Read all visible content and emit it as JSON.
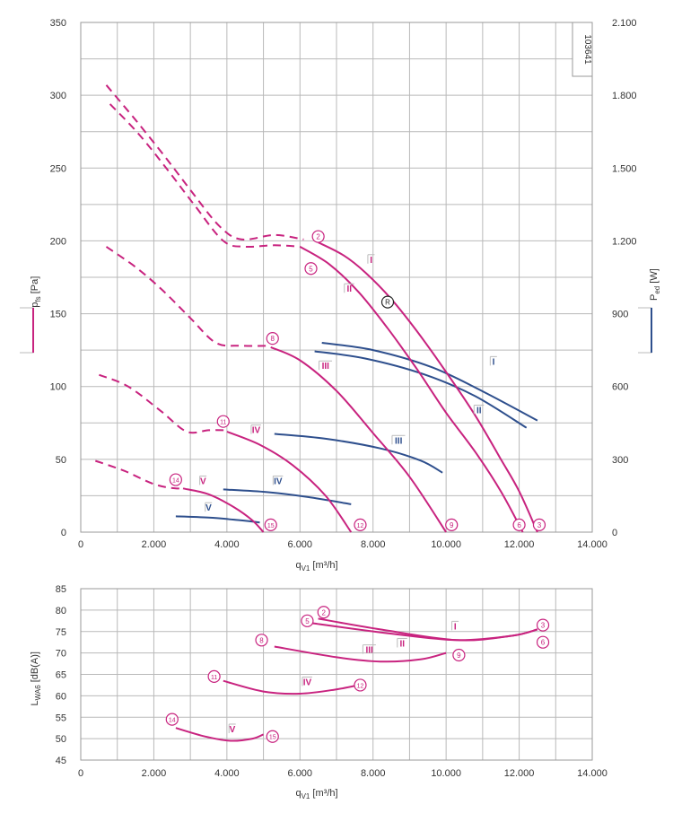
{
  "chart_data": [
    {
      "type": "line",
      "id": "pressure-power",
      "xlabel": "q",
      "xlabel_sub": "V1",
      "xlabel_unit": " [m³/h]",
      "ylabel": "p",
      "ylabel_sub": "fs",
      "ylabel_unit": " [Pa]",
      "y2label": "P",
      "y2label_sub": "ed",
      "y2label_unit": " [W]",
      "xlim": [
        0,
        14000
      ],
      "ylim": [
        0,
        350
      ],
      "y2lim": [
        0,
        2100
      ],
      "x_ticks": [
        0,
        2000,
        4000,
        6000,
        8000,
        10000,
        12000,
        14000
      ],
      "x_tick_labels": [
        "0",
        "2.000",
        "4.000",
        "6.000",
        "8.000",
        "10.000",
        "12.000",
        "14.000"
      ],
      "y_ticks": [
        0,
        50,
        100,
        150,
        200,
        250,
        300,
        350
      ],
      "y_tick_labels": [
        "0",
        "50",
        "100",
        "150",
        "200",
        "250",
        "300",
        "350"
      ],
      "y2_ticks": [
        0,
        300,
        600,
        900,
        1200,
        1500,
        1800,
        2100
      ],
      "y2_tick_labels": [
        "0",
        "300",
        "600",
        "900",
        "1.200",
        "1.500",
        "1.800",
        "2.100"
      ],
      "code": "103641",
      "grid": true,
      "colors": {
        "pressure": "#c8237f",
        "power": "#2e4f8d"
      },
      "pressure_series": [
        {
          "id": "I",
          "label": "I",
          "dashed_points": [
            [
              700,
              307
            ],
            [
              1500,
              283
            ],
            [
              2300,
              258
            ],
            [
              3000,
              235
            ],
            [
              3800,
              210
            ],
            [
              4400,
              201
            ],
            [
              5300,
              204
            ],
            [
              6100,
              201
            ]
          ],
          "solid_points": [
            [
              6500,
              199
            ],
            [
              7200,
              190
            ],
            [
              7800,
              178
            ],
            [
              8500,
              160
            ],
            [
              9200,
              138
            ],
            [
              10000,
              110
            ],
            [
              10800,
              80
            ],
            [
              11500,
              50
            ],
            [
              12000,
              28
            ],
            [
              12500,
              0
            ]
          ]
        },
        {
          "id": "II",
          "label": "II",
          "dashed_points": [
            [
              800,
              294
            ],
            [
              1600,
              273
            ],
            [
              2400,
              248
            ],
            [
              3100,
              225
            ],
            [
              3900,
              200
            ],
            [
              4500,
              196
            ],
            [
              5300,
              197
            ],
            [
              6000,
              196
            ]
          ],
          "solid_points": [
            [
              6000,
              196
            ],
            [
              6800,
              184
            ],
            [
              7600,
              165
            ],
            [
              8400,
              140
            ],
            [
              9200,
              112
            ],
            [
              10000,
              82
            ],
            [
              10800,
              55
            ],
            [
              11500,
              28
            ],
            [
              12100,
              0
            ]
          ]
        },
        {
          "id": "III",
          "label": "III",
          "dashed_points": [
            [
              700,
              196
            ],
            [
              1500,
              182
            ],
            [
              2200,
              167
            ],
            [
              3000,
              147
            ],
            [
              3700,
              130
            ],
            [
              4400,
              128
            ],
            [
              5200,
              128
            ]
          ],
          "solid_points": [
            [
              5200,
              127
            ],
            [
              6000,
              118
            ],
            [
              7000,
              97
            ],
            [
              8000,
              68
            ],
            [
              9000,
              38
            ],
            [
              10000,
              0
            ]
          ]
        },
        {
          "id": "IV",
          "label": "IV",
          "dashed_points": [
            [
              500,
              108
            ],
            [
              1300,
              100
            ],
            [
              2200,
              83
            ],
            [
              2900,
              69
            ],
            [
              3500,
              70
            ],
            [
              4000,
              70
            ]
          ],
          "solid_points": [
            [
              4000,
              69
            ],
            [
              4900,
              60
            ],
            [
              5800,
              46
            ],
            [
              6700,
              25
            ],
            [
              7400,
              0
            ]
          ]
        },
        {
          "id": "V",
          "label": "V",
          "dashed_points": [
            [
              400,
              49
            ],
            [
              1200,
              42
            ],
            [
              2000,
              33
            ],
            [
              2600,
              30
            ],
            [
              2800,
              31
            ]
          ],
          "solid_points": [
            [
              2800,
              30
            ],
            [
              3500,
              26
            ],
            [
              4200,
              17
            ],
            [
              4700,
              8
            ],
            [
              5000,
              0
            ]
          ]
        }
      ],
      "power_series": [
        {
          "id": "I",
          "label": "I",
          "points": [
            [
              6600,
              780
            ],
            [
              8000,
              750
            ],
            [
              9600,
              680
            ],
            [
              11000,
              580
            ],
            [
              12500,
              460
            ]
          ]
        },
        {
          "id": "II",
          "label": "II",
          "points": [
            [
              6400,
              745
            ],
            [
              7800,
              715
            ],
            [
              9400,
              650
            ],
            [
              10800,
              560
            ],
            [
              12200,
              430
            ]
          ]
        },
        {
          "id": "III",
          "label": "III",
          "points": [
            [
              5300,
              405
            ],
            [
              6700,
              385
            ],
            [
              8200,
              345
            ],
            [
              9300,
              295
            ],
            [
              9900,
              245
            ]
          ]
        },
        {
          "id": "IV",
          "label": "IV",
          "points": [
            [
              3900,
              176
            ],
            [
              5100,
              165
            ],
            [
              6200,
              145
            ],
            [
              7400,
              115
            ]
          ]
        },
        {
          "id": "V",
          "label": "V",
          "points": [
            [
              2600,
              65
            ],
            [
              3500,
              60
            ],
            [
              4300,
              50
            ],
            [
              4900,
              40
            ]
          ]
        }
      ],
      "series_labels": [
        {
          "text": "I",
          "kind": "pressure",
          "x": 7950,
          "y": 185
        },
        {
          "text": "II",
          "kind": "pressure",
          "x": 7350,
          "y": 165
        },
        {
          "text": "III",
          "kind": "pressure",
          "x": 6700,
          "y": 112
        },
        {
          "text": "IV",
          "kind": "pressure",
          "x": 4800,
          "y": 68
        },
        {
          "text": "V",
          "kind": "pressure",
          "x": 3350,
          "y": 33
        },
        {
          "text": "I",
          "kind": "power",
          "x": 11300,
          "y2": 690
        },
        {
          "text": "II",
          "kind": "power",
          "x": 10900,
          "y2": 490
        },
        {
          "text": "III",
          "kind": "power",
          "x": 8700,
          "y2": 365
        },
        {
          "text": "IV",
          "kind": "power",
          "x": 5400,
          "y2": 198
        },
        {
          "text": "V",
          "kind": "power",
          "x": 3500,
          "y2": 88
        }
      ],
      "markers": [
        {
          "n": "2",
          "x": 6500,
          "y": 203
        },
        {
          "n": "5",
          "x": 6300,
          "y": 181
        },
        {
          "n": "3",
          "x": 12550,
          "y": 5
        },
        {
          "n": "6",
          "x": 12000,
          "y": 5
        },
        {
          "n": "8",
          "x": 5250,
          "y": 133
        },
        {
          "n": "9",
          "x": 10150,
          "y": 5
        },
        {
          "n": "11",
          "x": 3900,
          "y": 76
        },
        {
          "n": "12",
          "x": 7650,
          "y": 5
        },
        {
          "n": "14",
          "x": 2600,
          "y": 36
        },
        {
          "n": "15",
          "x": 5200,
          "y": 5
        },
        {
          "n": "R",
          "x": 8400,
          "y": 158
        }
      ]
    },
    {
      "type": "line",
      "id": "sound-power",
      "xlabel": "q",
      "xlabel_sub": "V1",
      "xlabel_unit": " [m³/h]",
      "ylabel": "L",
      "ylabel_sub": "WA6",
      "ylabel_unit": " [dB(A)]",
      "xlim": [
        0,
        14000
      ],
      "ylim": [
        45,
        85
      ],
      "x_ticks": [
        0,
        2000,
        4000,
        6000,
        8000,
        10000,
        12000,
        14000
      ],
      "x_tick_labels": [
        "0",
        "2.000",
        "4.000",
        "6.000",
        "8.000",
        "10.000",
        "12.000",
        "14.000"
      ],
      "y_ticks": [
        45,
        50,
        55,
        60,
        65,
        70,
        75,
        80,
        85
      ],
      "y_tick_labels": [
        "45",
        "50",
        "55",
        "60",
        "65",
        "70",
        "75",
        "80",
        "85"
      ],
      "grid": true,
      "series": [
        {
          "id": "I",
          "label": "I",
          "points": [
            [
              6500,
              78
            ],
            [
              8200,
              75.5
            ],
            [
              10300,
              73
            ],
            [
              11800,
              74
            ],
            [
              12500,
              75.5
            ]
          ]
        },
        {
          "id": "II",
          "label": "II",
          "points": [
            [
              6300,
              77
            ],
            [
              8500,
              74.5
            ],
            [
              10300,
              73
            ],
            [
              11800,
              74
            ],
            [
              12500,
              75.5
            ]
          ]
        },
        {
          "id": "III",
          "label": "III",
          "points": [
            [
              5300,
              71.5
            ],
            [
              7000,
              69
            ],
            [
              8200,
              68
            ],
            [
              9300,
              68.5
            ],
            [
              10000,
              70
            ]
          ]
        },
        {
          "id": "IV",
          "label": "IV",
          "points": [
            [
              3900,
              63.5
            ],
            [
              5000,
              61
            ],
            [
              6000,
              60.5
            ],
            [
              7000,
              61.5
            ],
            [
              7600,
              62.5
            ]
          ]
        },
        {
          "id": "V",
          "label": "V",
          "points": [
            [
              2600,
              52.5
            ],
            [
              3400,
              50.5
            ],
            [
              4100,
              49.5
            ],
            [
              4700,
              50
            ],
            [
              5000,
              51
            ]
          ]
        }
      ],
      "series_labels": [
        {
          "text": "I",
          "x": 10250,
          "y": 75.5
        },
        {
          "text": "II",
          "x": 8800,
          "y": 71.5
        },
        {
          "text": "III",
          "x": 7900,
          "y": 70
        },
        {
          "text": "IV",
          "x": 6200,
          "y": 62.5
        },
        {
          "text": "V",
          "x": 4150,
          "y": 51.5
        }
      ],
      "markers": [
        {
          "n": "2",
          "x": 6650,
          "y": 79.5
        },
        {
          "n": "5",
          "x": 6200,
          "y": 77.5
        },
        {
          "n": "3",
          "x": 12650,
          "y": 76.5
        },
        {
          "n": "6",
          "x": 12650,
          "y": 72.5
        },
        {
          "n": "8",
          "x": 4950,
          "y": 73
        },
        {
          "n": "9",
          "x": 10350,
          "y": 69.5
        },
        {
          "n": "11",
          "x": 3650,
          "y": 64.5
        },
        {
          "n": "12",
          "x": 7650,
          "y": 62.5
        },
        {
          "n": "14",
          "x": 2500,
          "y": 54.5
        },
        {
          "n": "15",
          "x": 5250,
          "y": 50.5
        }
      ]
    }
  ]
}
